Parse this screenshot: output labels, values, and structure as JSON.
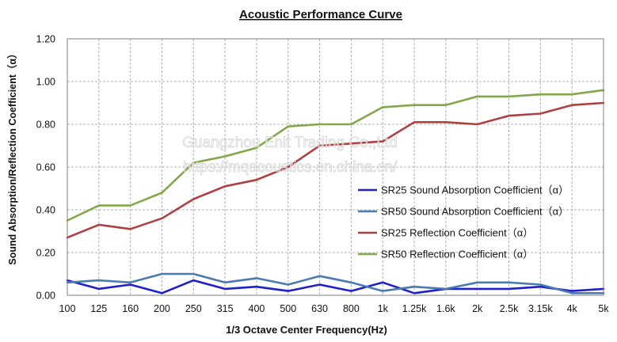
{
  "chart_data": {
    "type": "line",
    "title": "Acoustic Performance Curve",
    "xlabel": "1/3 Octave Center Frequency(Hz)",
    "ylabel": "Sound Absorption/Reflection Coefficient（α）",
    "categories": [
      "100",
      "125",
      "160",
      "200",
      "250",
      "315",
      "400",
      "500",
      "630",
      "800",
      "1k",
      "1.25k",
      "1.6k",
      "2k",
      "2.5k",
      "3.15k",
      "4k",
      "5k"
    ],
    "yticks": [
      "0.00",
      "0.20",
      "0.40",
      "0.60",
      "0.80",
      "1.00",
      "1.20"
    ],
    "ylim": [
      0,
      1.2
    ],
    "grid": true,
    "legend_position": "right-middle",
    "watermark": [
      "Guangzhou Enit Trading Co.,Ltd",
      "https://mqacoustics.en.china.cn/"
    ],
    "series": [
      {
        "name": "SR25 Sound Absorption Coefficient（α）",
        "color": "#1f1fd0",
        "values": [
          0.07,
          0.03,
          0.05,
          0.01,
          0.07,
          0.03,
          0.04,
          0.02,
          0.05,
          0.02,
          0.06,
          0.01,
          0.03,
          0.03,
          0.03,
          0.04,
          0.02,
          0.03
        ]
      },
      {
        "name": "SR50 Sound Absorption Coefficient（α）",
        "color": "#4a7bb0",
        "values": [
          0.06,
          0.07,
          0.06,
          0.1,
          0.1,
          0.06,
          0.08,
          0.05,
          0.09,
          0.06,
          0.02,
          0.04,
          0.03,
          0.06,
          0.06,
          0.05,
          0.01,
          0.01
        ]
      },
      {
        "name": "SR25 Reflection Coefficient（α）",
        "color": "#b04040",
        "values": [
          0.27,
          0.33,
          0.31,
          0.36,
          0.45,
          0.51,
          0.54,
          0.6,
          0.7,
          0.71,
          0.72,
          0.81,
          0.81,
          0.8,
          0.84,
          0.85,
          0.89,
          0.9
        ]
      },
      {
        "name": "SR50 Reflection Coefficient（α）",
        "color": "#82a84a",
        "values": [
          0.35,
          0.42,
          0.42,
          0.48,
          0.62,
          0.65,
          0.69,
          0.79,
          0.8,
          0.8,
          0.88,
          0.89,
          0.89,
          0.93,
          0.93,
          0.94,
          0.94,
          0.96
        ]
      }
    ]
  }
}
